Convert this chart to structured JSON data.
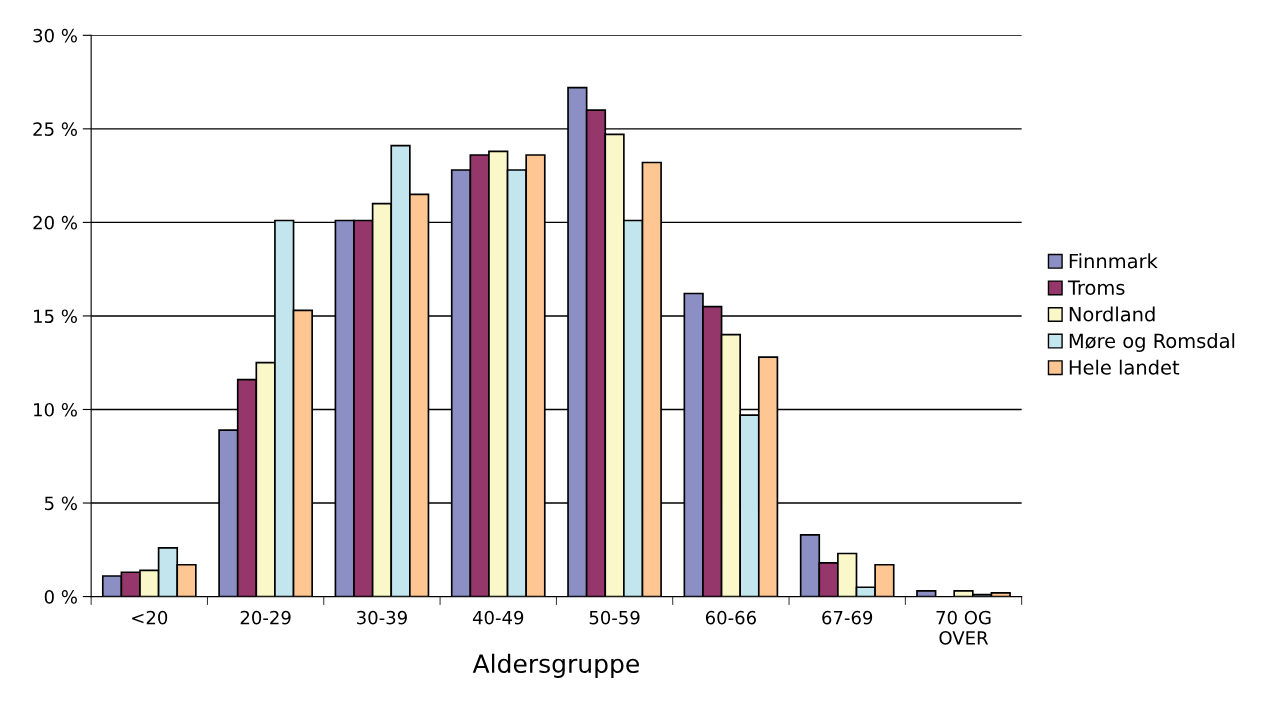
{
  "chart_data": {
    "type": "bar",
    "xlabel": "Aldersgruppe",
    "categories": [
      "<20",
      "20-29",
      "30-39",
      "40-49",
      "50-59",
      "60-66",
      "67-69",
      "70 OG\nOVER"
    ],
    "series": [
      {
        "name": "Finnmark",
        "color": "#8b8fc4",
        "values": [
          1.1,
          8.9,
          20.1,
          22.8,
          27.2,
          16.2,
          3.3,
          0.3
        ]
      },
      {
        "name": "Troms",
        "color": "#96376b",
        "values": [
          1.3,
          11.6,
          20.1,
          23.6,
          26.0,
          15.5,
          1.8,
          null
        ]
      },
      {
        "name": "Nordland",
        "color": "#faf7c8",
        "values": [
          1.4,
          12.5,
          21.0,
          23.8,
          24.7,
          14.0,
          2.3,
          0.3
        ]
      },
      {
        "name": "Møre og Romsdal",
        "color": "#c3e6ee",
        "values": [
          2.6,
          20.1,
          24.1,
          22.8,
          20.1,
          9.7,
          0.5,
          0.1
        ]
      },
      {
        "name": "Hele landet",
        "color": "#fdc693",
        "values": [
          1.7,
          15.3,
          21.5,
          23.6,
          23.2,
          12.8,
          1.7,
          0.2
        ]
      }
    ],
    "ylim": [
      0,
      30
    ],
    "yticks": [
      {
        "value": 0,
        "label": "0 %"
      },
      {
        "value": 5,
        "label": "5 %"
      },
      {
        "value": 10,
        "label": "10 %"
      },
      {
        "value": 15,
        "label": "15 %"
      },
      {
        "value": 20,
        "label": "20 %"
      },
      {
        "value": 25,
        "label": "25 %"
      },
      {
        "value": 30,
        "label": "30 %"
      }
    ],
    "grid": "y",
    "legend": "right"
  }
}
